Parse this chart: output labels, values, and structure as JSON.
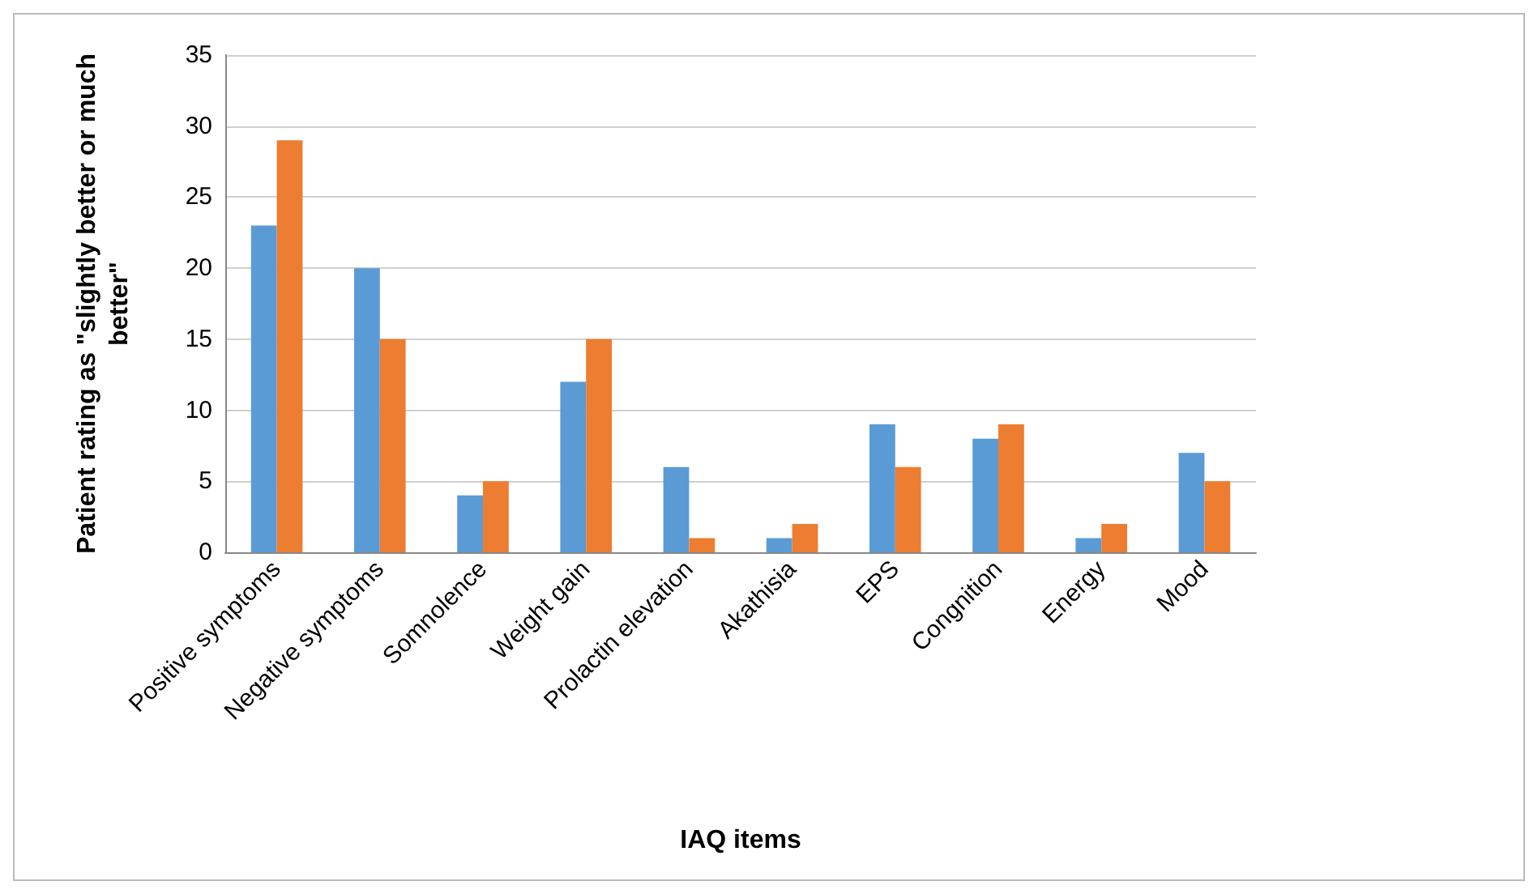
{
  "chart_data": {
    "type": "bar",
    "xlabel": "IAQ items",
    "ylabel": "Patient rating as \"slightly better or much better\"",
    "categories": [
      "Positive symptoms",
      "Negative symptoms",
      "Somnolence",
      "Weight gain",
      "Prolactin elevation",
      "Akathisia",
      "EPS",
      "Congnition",
      "Energy",
      "Mood"
    ],
    "series": [
      {
        "color": "#5b9bd5",
        "values": [
          23,
          20,
          4,
          12,
          6,
          1,
          9,
          8,
          1,
          7
        ]
      },
      {
        "color": "#ed7d31",
        "values": [
          29,
          15,
          5,
          15,
          1,
          2,
          6,
          9,
          2,
          5
        ]
      }
    ],
    "ylim": [
      0,
      35
    ],
    "yticks": [
      0,
      5,
      10,
      15,
      20,
      25,
      30,
      35
    ],
    "grid": "y"
  }
}
